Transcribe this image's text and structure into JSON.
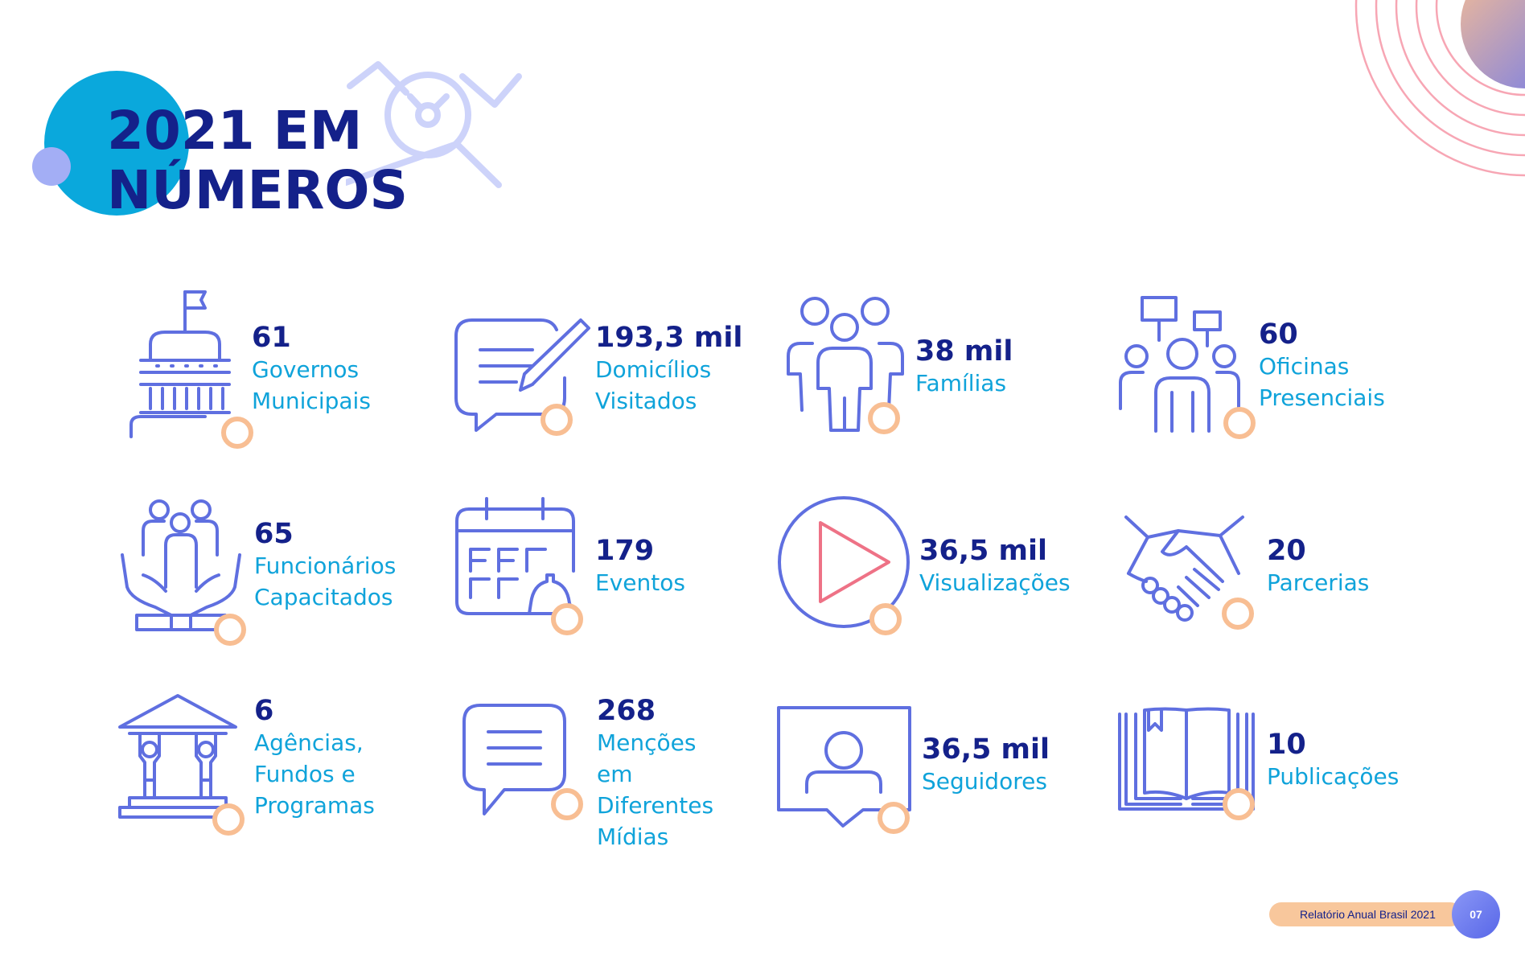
{
  "title": {
    "line1": "2021 EM",
    "line2": "NÚMEROS"
  },
  "colors": {
    "navy": "#14218A",
    "cyan": "#0FA3DA",
    "icon_stroke": "#5F6FE0",
    "accent_ring": "#F8BE93",
    "play_triangle": "#EE7286",
    "deco_rings": "#F7A6B4"
  },
  "stats": [
    {
      "number": "61",
      "label": "Governos\nMunicipais",
      "icon": "government-building-icon"
    },
    {
      "number": "193,3 mil",
      "label": "Domicílios\nVisitados",
      "icon": "chat-pencil-icon"
    },
    {
      "number": "38 mil",
      "label": "Famílias",
      "icon": "family-group-icon"
    },
    {
      "number": "60",
      "label": "Oficinas\nPresenciais",
      "icon": "protest-signs-icon"
    },
    {
      "number": "65",
      "label": "Funcionários\nCapacitados",
      "icon": "hands-people-icon"
    },
    {
      "number": "179",
      "label": "Eventos",
      "icon": "calendar-bell-icon"
    },
    {
      "number": "36,5 mil",
      "label": "Visualizações",
      "icon": "play-button-icon"
    },
    {
      "number": "20",
      "label": "Parcerias",
      "icon": "handshake-icon"
    },
    {
      "number": "6",
      "label": "Agências,\nFundos e\nProgramas",
      "icon": "temple-pillars-icon"
    },
    {
      "number": "268",
      "label": "Menções em\nDiferentes\nMídias",
      "icon": "speech-bubble-icon"
    },
    {
      "number": "36,5 mil",
      "label": "Seguidores",
      "icon": "user-profile-icon"
    },
    {
      "number": "10",
      "label": "Publicações",
      "icon": "open-book-icon"
    }
  ],
  "footer": {
    "report": "Relatório Anual Brasil 2021",
    "page": "07"
  }
}
